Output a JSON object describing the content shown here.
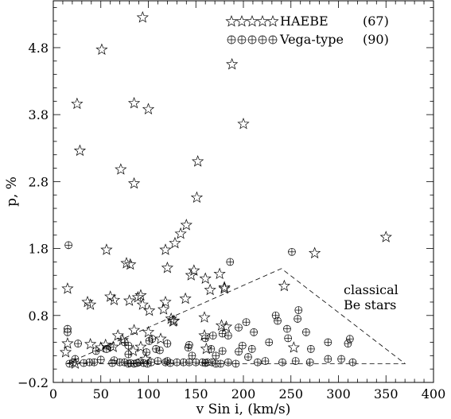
{
  "chart_data": {
    "type": "scatter",
    "xlabel": "v Sin i, (km/s)",
    "ylabel": "p, %",
    "xlim": [
      0,
      400
    ],
    "ylim": [
      -0.2,
      5.5
    ],
    "xticks": [
      0,
      50,
      100,
      150,
      200,
      250,
      300,
      350,
      400
    ],
    "yticks": [
      -0.2,
      0.8,
      1.8,
      2.8,
      3.8,
      4.8
    ],
    "ytick_labels": [
      "−0.2",
      "0.8",
      "1.8",
      "2.8",
      "3.8",
      "4.8"
    ],
    "legend_position": "top-right",
    "series": [
      {
        "name": "HAEBE",
        "count": "(67)",
        "marker": "star",
        "points": [
          [
            94,
            5.25
          ],
          [
            51,
            4.77
          ],
          [
            188,
            4.55
          ],
          [
            25,
            3.96
          ],
          [
            85,
            3.97
          ],
          [
            100,
            3.88
          ],
          [
            200,
            3.66
          ],
          [
            28,
            3.26
          ],
          [
            71,
            2.98
          ],
          [
            152,
            3.1
          ],
          [
            85,
            2.77
          ],
          [
            151,
            2.56
          ],
          [
            140,
            2.15
          ],
          [
            134,
            2.02
          ],
          [
            128,
            1.88
          ],
          [
            350,
            1.97
          ],
          [
            118,
            1.78
          ],
          [
            56,
            1.78
          ],
          [
            77,
            1.58
          ],
          [
            81,
            1.56
          ],
          [
            120,
            1.51
          ],
          [
            275,
            1.73
          ],
          [
            175,
            1.42
          ],
          [
            145,
            1.4
          ],
          [
            148,
            1.47
          ],
          [
            160,
            1.35
          ],
          [
            15,
            1.2
          ],
          [
            165,
            1.18
          ],
          [
            180,
            1.22
          ],
          [
            243,
            1.24
          ],
          [
            180,
            1.2
          ],
          [
            60,
            1.08
          ],
          [
            64,
            1.03
          ],
          [
            89,
            1.07
          ],
          [
            92,
            1.1
          ],
          [
            80,
            1.02
          ],
          [
            36,
            1.0
          ],
          [
            39,
            0.96
          ],
          [
            118,
            1.0
          ],
          [
            139,
            1.05
          ],
          [
            94,
            0.96
          ],
          [
            101,
            0.87
          ],
          [
            116,
            0.89
          ],
          [
            124,
            0.75
          ],
          [
            127,
            0.72
          ],
          [
            126,
            0.71
          ],
          [
            85,
            0.58
          ],
          [
            100,
            0.55
          ],
          [
            159,
            0.77
          ],
          [
            177,
            0.65
          ],
          [
            182,
            0.63
          ],
          [
            68,
            0.5
          ],
          [
            73,
            0.43
          ],
          [
            113,
            0.45
          ],
          [
            159,
            0.5
          ],
          [
            63,
            0.33
          ],
          [
            39,
            0.37
          ],
          [
            50,
            0.32
          ],
          [
            55,
            0.36
          ],
          [
            92,
            0.33
          ],
          [
            84,
            0.27
          ],
          [
            15,
            0.38
          ],
          [
            13,
            0.25
          ],
          [
            161,
            0.3
          ],
          [
            253,
            0.32
          ],
          [
            23,
            0.08
          ],
          [
            97,
            0.15
          ]
        ]
      },
      {
        "name": "Vega-type",
        "count": "(90)",
        "marker": "circle-plus",
        "points": [
          [
            16,
            1.85
          ],
          [
            251,
            1.75
          ],
          [
            186,
            1.6
          ],
          [
            15,
            0.55
          ],
          [
            15,
            0.6
          ],
          [
            26,
            0.38
          ],
          [
            56,
            0.3
          ],
          [
            60,
            0.33
          ],
          [
            75,
            0.4
          ],
          [
            79,
            0.35
          ],
          [
            101,
            0.42
          ],
          [
            104,
            0.45
          ],
          [
            120,
            0.38
          ],
          [
            142,
            0.32
          ],
          [
            143,
            0.36
          ],
          [
            160,
            0.46
          ],
          [
            168,
            0.5
          ],
          [
            178,
            0.53
          ],
          [
            184,
            0.5
          ],
          [
            195,
            0.62
          ],
          [
            203,
            0.7
          ],
          [
            211,
            0.55
          ],
          [
            246,
            0.6
          ],
          [
            257,
            0.75
          ],
          [
            258,
            0.88
          ],
          [
            234,
            0.8
          ],
          [
            236,
            0.72
          ],
          [
            195,
            0.26
          ],
          [
            199,
            0.35
          ],
          [
            209,
            0.3
          ],
          [
            227,
            0.4
          ],
          [
            247,
            0.46
          ],
          [
            266,
            0.55
          ],
          [
            289,
            0.4
          ],
          [
            271,
            0.3
          ],
          [
            310,
            0.38
          ],
          [
            312,
            0.45
          ],
          [
            45,
            0.27
          ],
          [
            98,
            0.25
          ],
          [
            108,
            0.3
          ],
          [
            79,
            0.22
          ],
          [
            112,
            0.28
          ],
          [
            23,
            0.15
          ],
          [
            50,
            0.14
          ],
          [
            32,
            0.09
          ],
          [
            38,
            0.1
          ],
          [
            43,
            0.1
          ],
          [
            64,
            0.13
          ],
          [
            70,
            0.1
          ],
          [
            75,
            0.1
          ],
          [
            79,
            0.08
          ],
          [
            81,
            0.09
          ],
          [
            85,
            0.08
          ],
          [
            90,
            0.1
          ],
          [
            95,
            0.09
          ],
          [
            99,
            0.08
          ],
          [
            103,
            0.1
          ],
          [
            110,
            0.12
          ],
          [
            118,
            0.1
          ],
          [
            123,
            0.09
          ],
          [
            130,
            0.1
          ],
          [
            137,
            0.1
          ],
          [
            143,
            0.1
          ],
          [
            150,
            0.1
          ],
          [
            157,
            0.1
          ],
          [
            160,
            0.09
          ],
          [
            162,
            0.1
          ],
          [
            167,
            0.1
          ],
          [
            171,
            0.08
          ],
          [
            176,
            0.08
          ],
          [
            184,
            0.1
          ],
          [
            192,
            0.08
          ],
          [
            215,
            0.1
          ],
          [
            223,
            0.12
          ],
          [
            241,
            0.1
          ],
          [
            255,
            0.12
          ],
          [
            270,
            0.1
          ],
          [
            289,
            0.15
          ],
          [
            303,
            0.15
          ],
          [
            315,
            0.1
          ],
          [
            17,
            0.08
          ],
          [
            21,
            0.1
          ],
          [
            62,
            0.09
          ],
          [
            88,
            0.09
          ],
          [
            146,
            0.2
          ],
          [
            171,
            0.2
          ],
          [
            178,
            0.27
          ],
          [
            166,
            0.3
          ],
          [
            120,
            0.12
          ],
          [
            205,
            0.18
          ]
        ]
      }
    ],
    "annotation": {
      "lines": [
        "classical",
        "Be stars"
      ],
      "region": [
        [
          14,
          0.08
        ],
        [
          240,
          1.5
        ],
        [
          370,
          0.08
        ],
        [
          14,
          0.08
        ]
      ]
    }
  }
}
